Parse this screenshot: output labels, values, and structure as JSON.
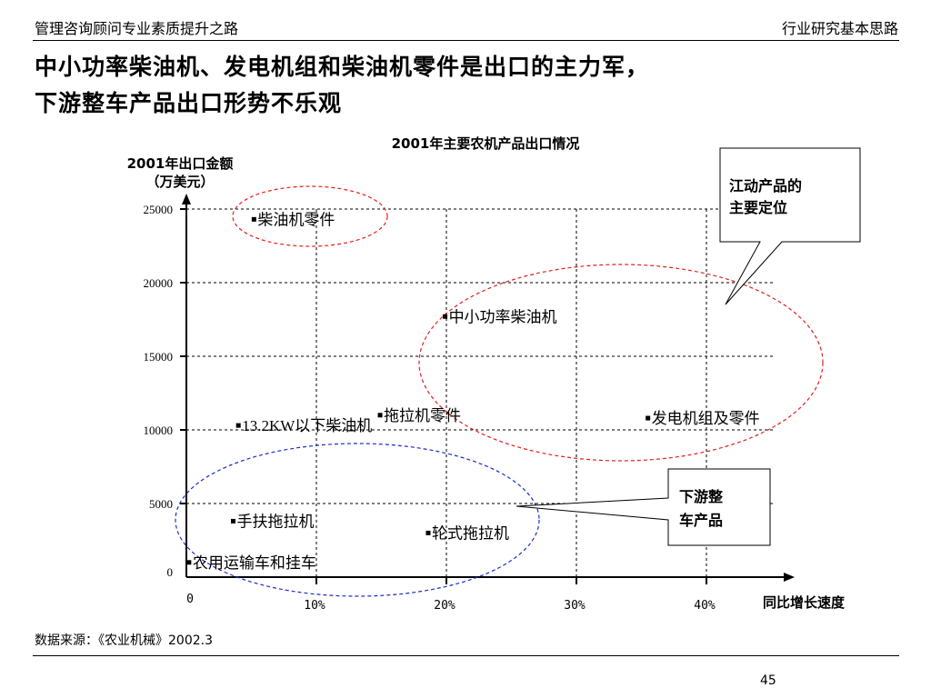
{
  "header": {
    "left": "管理咨询顾问专业素质提升之路",
    "right": "行业研究基本思路"
  },
  "title": {
    "line1": "中小功率柴油机、发电机组和柴油机零件是出口的主力军，",
    "line2": "下游整车产品出口形势不乐观"
  },
  "chart_data": {
    "type": "scatter",
    "title": "2001年主要农机产品出口情况",
    "ylabel_lines": [
      "2001年出口金额",
      "（万美元）"
    ],
    "xlabel": "同比增长速度",
    "xlim": [
      0,
      45
    ],
    "ylim": [
      0,
      25000
    ],
    "x_ticks": [
      {
        "value": 0,
        "label": "0"
      },
      {
        "value": 10,
        "label": "10%"
      },
      {
        "value": 20,
        "label": "20%"
      },
      {
        "value": 30,
        "label": "30%"
      },
      {
        "value": 40,
        "label": "40%"
      }
    ],
    "y_ticks": [
      {
        "value": 0,
        "label": "0"
      },
      {
        "value": 5000,
        "label": "5000"
      },
      {
        "value": 10000,
        "label": "10000"
      },
      {
        "value": 15000,
        "label": "15000"
      },
      {
        "value": 20000,
        "label": "20000"
      },
      {
        "value": 25000,
        "label": "25000"
      }
    ],
    "grid": true,
    "points": [
      {
        "label": "柴油机零件",
        "x": 5.2,
        "y": 24300
      },
      {
        "label": "中小功率柴油机",
        "x": 19.9,
        "y": 17700
      },
      {
        "label": "13.2KW以下柴油机",
        "x": 4.0,
        "y": 10300
      },
      {
        "label": "拖拉机零件",
        "x": 14.9,
        "y": 11000
      },
      {
        "label": "发电机组及零件",
        "x": 35.5,
        "y": 10800
      },
      {
        "label": "手扶拖拉机",
        "x": 3.6,
        "y": 3800
      },
      {
        "label": "轮式拖拉机",
        "x": 18.6,
        "y": 3000
      },
      {
        "label": "农用运输车和挂车",
        "x": 0.2,
        "y": 1000
      }
    ],
    "callouts": [
      {
        "name": "main-position",
        "lines": [
          "江动产品的",
          "主要定位"
        ]
      },
      {
        "name": "downstream",
        "lines": [
          "下游整",
          "车产品"
        ]
      }
    ],
    "colors": {
      "red_ellipse": "#e02020",
      "blue_ellipse": "#1f2bc8"
    }
  },
  "source": "数据来源：《农业机械》2002.3",
  "page_number": "45"
}
